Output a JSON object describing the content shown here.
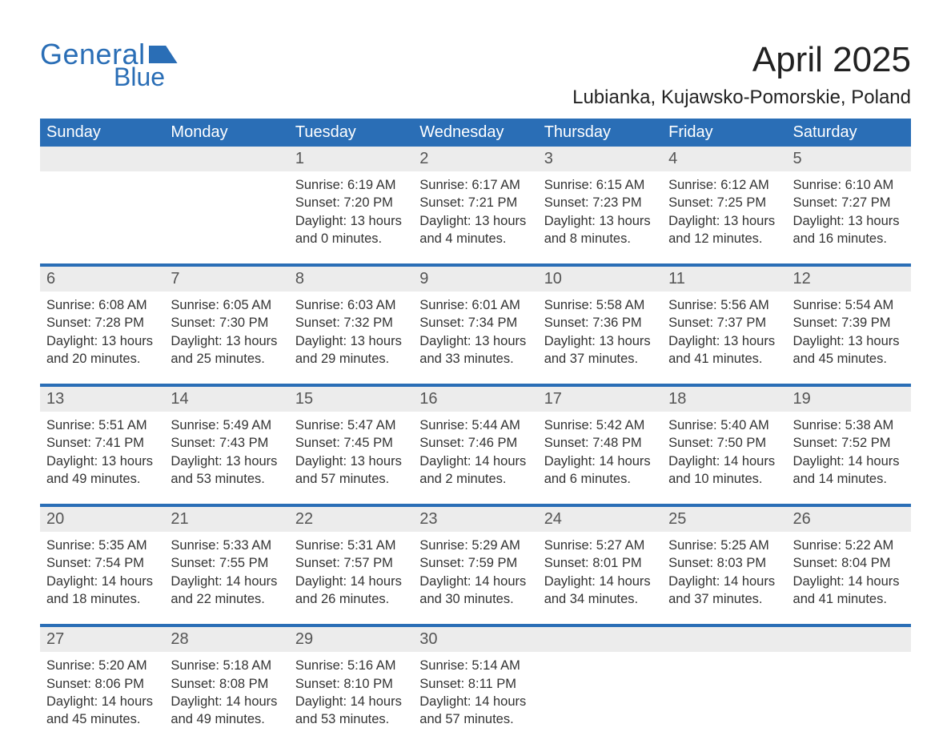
{
  "logo": {
    "word1": "General",
    "word2": "Blue"
  },
  "title": "April 2025",
  "location": "Lubianka, Kujawsko-Pomorskie, Poland",
  "header_bg": "#2a6eb6",
  "daynum_bg": "#ececec",
  "text_color": "#333333",
  "day_headers": [
    "Sunday",
    "Monday",
    "Tuesday",
    "Wednesday",
    "Thursday",
    "Friday",
    "Saturday"
  ],
  "weeks": [
    {
      "nums": [
        "",
        "",
        "1",
        "2",
        "3",
        "4",
        "5"
      ],
      "cells": [
        {
          "sunrise": "",
          "sunset": "",
          "daylight1": "",
          "daylight2": ""
        },
        {
          "sunrise": "",
          "sunset": "",
          "daylight1": "",
          "daylight2": ""
        },
        {
          "sunrise": "Sunrise: 6:19 AM",
          "sunset": "Sunset: 7:20 PM",
          "daylight1": "Daylight: 13 hours",
          "daylight2": "and 0 minutes."
        },
        {
          "sunrise": "Sunrise: 6:17 AM",
          "sunset": "Sunset: 7:21 PM",
          "daylight1": "Daylight: 13 hours",
          "daylight2": "and 4 minutes."
        },
        {
          "sunrise": "Sunrise: 6:15 AM",
          "sunset": "Sunset: 7:23 PM",
          "daylight1": "Daylight: 13 hours",
          "daylight2": "and 8 minutes."
        },
        {
          "sunrise": "Sunrise: 6:12 AM",
          "sunset": "Sunset: 7:25 PM",
          "daylight1": "Daylight: 13 hours",
          "daylight2": "and 12 minutes."
        },
        {
          "sunrise": "Sunrise: 6:10 AM",
          "sunset": "Sunset: 7:27 PM",
          "daylight1": "Daylight: 13 hours",
          "daylight2": "and 16 minutes."
        }
      ]
    },
    {
      "nums": [
        "6",
        "7",
        "8",
        "9",
        "10",
        "11",
        "12"
      ],
      "cells": [
        {
          "sunrise": "Sunrise: 6:08 AM",
          "sunset": "Sunset: 7:28 PM",
          "daylight1": "Daylight: 13 hours",
          "daylight2": "and 20 minutes."
        },
        {
          "sunrise": "Sunrise: 6:05 AM",
          "sunset": "Sunset: 7:30 PM",
          "daylight1": "Daylight: 13 hours",
          "daylight2": "and 25 minutes."
        },
        {
          "sunrise": "Sunrise: 6:03 AM",
          "sunset": "Sunset: 7:32 PM",
          "daylight1": "Daylight: 13 hours",
          "daylight2": "and 29 minutes."
        },
        {
          "sunrise": "Sunrise: 6:01 AM",
          "sunset": "Sunset: 7:34 PM",
          "daylight1": "Daylight: 13 hours",
          "daylight2": "and 33 minutes."
        },
        {
          "sunrise": "Sunrise: 5:58 AM",
          "sunset": "Sunset: 7:36 PM",
          "daylight1": "Daylight: 13 hours",
          "daylight2": "and 37 minutes."
        },
        {
          "sunrise": "Sunrise: 5:56 AM",
          "sunset": "Sunset: 7:37 PM",
          "daylight1": "Daylight: 13 hours",
          "daylight2": "and 41 minutes."
        },
        {
          "sunrise": "Sunrise: 5:54 AM",
          "sunset": "Sunset: 7:39 PM",
          "daylight1": "Daylight: 13 hours",
          "daylight2": "and 45 minutes."
        }
      ]
    },
    {
      "nums": [
        "13",
        "14",
        "15",
        "16",
        "17",
        "18",
        "19"
      ],
      "cells": [
        {
          "sunrise": "Sunrise: 5:51 AM",
          "sunset": "Sunset: 7:41 PM",
          "daylight1": "Daylight: 13 hours",
          "daylight2": "and 49 minutes."
        },
        {
          "sunrise": "Sunrise: 5:49 AM",
          "sunset": "Sunset: 7:43 PM",
          "daylight1": "Daylight: 13 hours",
          "daylight2": "and 53 minutes."
        },
        {
          "sunrise": "Sunrise: 5:47 AM",
          "sunset": "Sunset: 7:45 PM",
          "daylight1": "Daylight: 13 hours",
          "daylight2": "and 57 minutes."
        },
        {
          "sunrise": "Sunrise: 5:44 AM",
          "sunset": "Sunset: 7:46 PM",
          "daylight1": "Daylight: 14 hours",
          "daylight2": "and 2 minutes."
        },
        {
          "sunrise": "Sunrise: 5:42 AM",
          "sunset": "Sunset: 7:48 PM",
          "daylight1": "Daylight: 14 hours",
          "daylight2": "and 6 minutes."
        },
        {
          "sunrise": "Sunrise: 5:40 AM",
          "sunset": "Sunset: 7:50 PM",
          "daylight1": "Daylight: 14 hours",
          "daylight2": "and 10 minutes."
        },
        {
          "sunrise": "Sunrise: 5:38 AM",
          "sunset": "Sunset: 7:52 PM",
          "daylight1": "Daylight: 14 hours",
          "daylight2": "and 14 minutes."
        }
      ]
    },
    {
      "nums": [
        "20",
        "21",
        "22",
        "23",
        "24",
        "25",
        "26"
      ],
      "cells": [
        {
          "sunrise": "Sunrise: 5:35 AM",
          "sunset": "Sunset: 7:54 PM",
          "daylight1": "Daylight: 14 hours",
          "daylight2": "and 18 minutes."
        },
        {
          "sunrise": "Sunrise: 5:33 AM",
          "sunset": "Sunset: 7:55 PM",
          "daylight1": "Daylight: 14 hours",
          "daylight2": "and 22 minutes."
        },
        {
          "sunrise": "Sunrise: 5:31 AM",
          "sunset": "Sunset: 7:57 PM",
          "daylight1": "Daylight: 14 hours",
          "daylight2": "and 26 minutes."
        },
        {
          "sunrise": "Sunrise: 5:29 AM",
          "sunset": "Sunset: 7:59 PM",
          "daylight1": "Daylight: 14 hours",
          "daylight2": "and 30 minutes."
        },
        {
          "sunrise": "Sunrise: 5:27 AM",
          "sunset": "Sunset: 8:01 PM",
          "daylight1": "Daylight: 14 hours",
          "daylight2": "and 34 minutes."
        },
        {
          "sunrise": "Sunrise: 5:25 AM",
          "sunset": "Sunset: 8:03 PM",
          "daylight1": "Daylight: 14 hours",
          "daylight2": "and 37 minutes."
        },
        {
          "sunrise": "Sunrise: 5:22 AM",
          "sunset": "Sunset: 8:04 PM",
          "daylight1": "Daylight: 14 hours",
          "daylight2": "and 41 minutes."
        }
      ]
    },
    {
      "nums": [
        "27",
        "28",
        "29",
        "30",
        "",
        "",
        ""
      ],
      "cells": [
        {
          "sunrise": "Sunrise: 5:20 AM",
          "sunset": "Sunset: 8:06 PM",
          "daylight1": "Daylight: 14 hours",
          "daylight2": "and 45 minutes."
        },
        {
          "sunrise": "Sunrise: 5:18 AM",
          "sunset": "Sunset: 8:08 PM",
          "daylight1": "Daylight: 14 hours",
          "daylight2": "and 49 minutes."
        },
        {
          "sunrise": "Sunrise: 5:16 AM",
          "sunset": "Sunset: 8:10 PM",
          "daylight1": "Daylight: 14 hours",
          "daylight2": "and 53 minutes."
        },
        {
          "sunrise": "Sunrise: 5:14 AM",
          "sunset": "Sunset: 8:11 PM",
          "daylight1": "Daylight: 14 hours",
          "daylight2": "and 57 minutes."
        },
        {
          "sunrise": "",
          "sunset": "",
          "daylight1": "",
          "daylight2": ""
        },
        {
          "sunrise": "",
          "sunset": "",
          "daylight1": "",
          "daylight2": ""
        },
        {
          "sunrise": "",
          "sunset": "",
          "daylight1": "",
          "daylight2": ""
        }
      ]
    }
  ]
}
